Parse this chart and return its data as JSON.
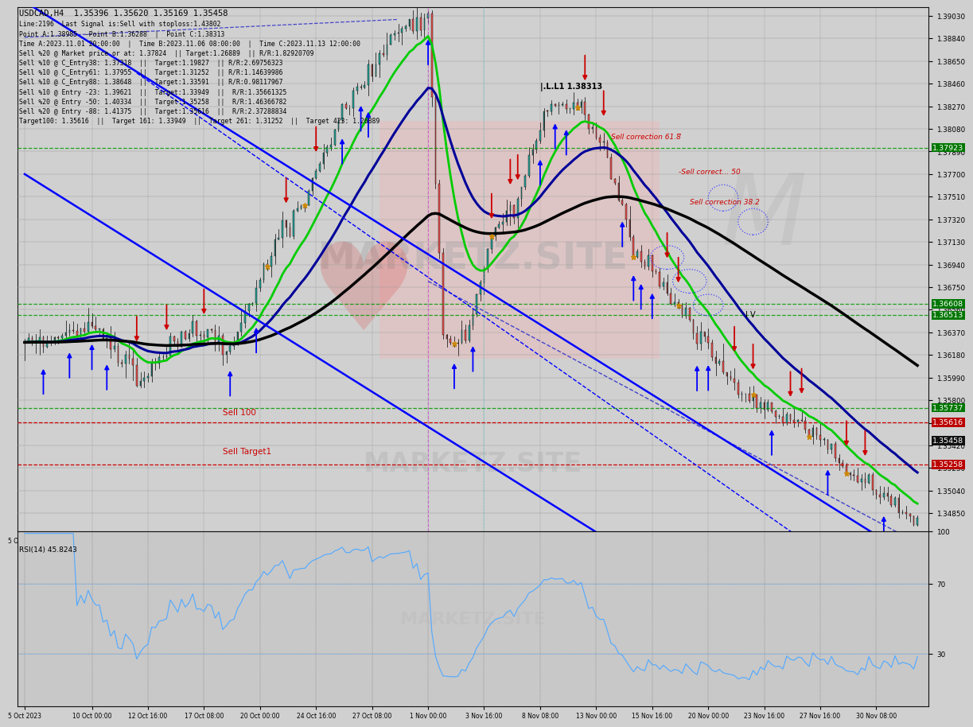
{
  "title": "USDCAD,H4  1.35396 1.35620 1.35169 1.35458",
  "info_lines": [
    "Line:2196  Last Signal is:Sell with stoploss:1.43802",
    "Point A:1.38985  -Point B:1.36288  |  Point C:1.38313",
    "Time A:2023.11.01 20:00:00  |  Time B:2023.11.06 08:00:00  |  Time C:2023.11.13 12:00:00",
    "Sell %20 @ Market price or at: 1.37824  || Target:1.26889  || R/R:1.82920709",
    "Sell %10 @ C_Entry38: 1.37318  ||  Target:1.19827  || R/R:2.69756323",
    "Sell %10 @ C_Entry61: 1.37955  ||  Target:1.31252  || R/R:1.14639986",
    "Sell %10 @ C_Entry88: 1.38648  ||  Target:1.33591  || R/R:0.98117967",
    "Sell %10 @ Entry -23: 1.39621  ||  Target:1.33949  ||  R/R:1.35661325",
    "Sell %20 @ Entry -50: 1.40334  ||  Target:1.35258  ||  R/R:1.46366782",
    "Sell %20 @ Entry -88: 1.41375  ||  Target:1.35616  ||  R/R:2.37288834",
    "Target100: 1.35616  ||  Target 161: 1.33949  ||  Target 261: 1.31252  ||  Target 423: 1.26889"
  ],
  "y_min": 1.34695,
  "y_max": 1.391,
  "rsi_value": "45.8243",
  "watermark": "MARKETZ.SITE",
  "background_color": "#d0d0d0",
  "chart_bg": "#d0d0d0",
  "price_labels_green": [
    1.37923,
    1.36608,
    1.36513,
    1.35737
  ],
  "price_labels_red": [
    1.35616,
    1.35258
  ],
  "price_label_black": 1.35458,
  "sell100": 1.35616,
  "sell_target1": 1.35258,
  "x_dates": [
    [
      0,
      "5 Oct 2023"
    ],
    [
      18,
      "10 Oct 00:00"
    ],
    [
      33,
      "12 Oct 16:00"
    ],
    [
      48,
      "17 Oct 08:00"
    ],
    [
      63,
      "20 Oct 00:00"
    ],
    [
      78,
      "24 Oct 16:00"
    ],
    [
      93,
      "27 Oct 08:00"
    ],
    [
      108,
      "1 Nov 00:00"
    ],
    [
      123,
      "3 Nov 16:00"
    ],
    [
      138,
      "8 Nov 08:00"
    ],
    [
      153,
      "13 Nov 00:00"
    ],
    [
      168,
      "15 Nov 16:00"
    ],
    [
      183,
      "20 Nov 00:00"
    ],
    [
      198,
      "23 Nov 16:00"
    ],
    [
      213,
      "27 Nov 16:00"
    ],
    [
      228,
      "30 Nov 08:00"
    ]
  ]
}
